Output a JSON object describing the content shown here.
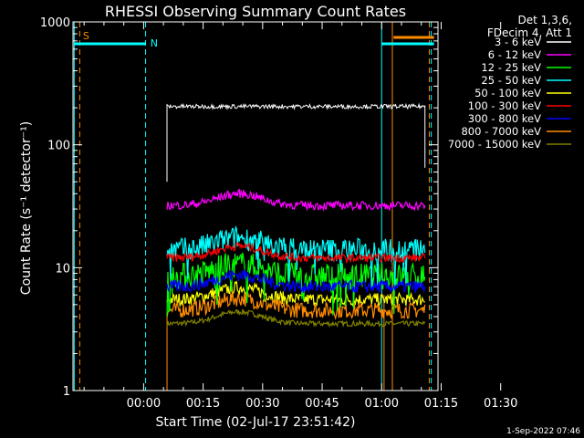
{
  "chart_data": {
    "type": "line",
    "title": "RHESSI Observing Summary Count Rates",
    "xlabel": "Start Time (02-Jul-17 23:51:42)",
    "ylabel": "Count Rate (s⁻¹ detector⁻¹)",
    "yscale": "log",
    "ylim": [
      1,
      1000
    ],
    "xlim_minutes": [
      -9.5,
      82.5
    ],
    "x_ticks": [
      {
        "label": "00:00",
        "min": 8.3
      },
      {
        "label": "00:15",
        "min": 23.3
      },
      {
        "label": "00:30",
        "min": 38.3
      },
      {
        "label": "00:45",
        "min": 53.3
      },
      {
        "label": "01:00",
        "min": 68.3
      },
      {
        "label": "01:15",
        "min": 83.3
      },
      {
        "label": "01:30",
        "min": 98.3
      }
    ],
    "y_ticks": [
      "1",
      "10",
      "100",
      "1000"
    ],
    "data_window_minutes": [
      14.2,
      79.2
    ],
    "legend_header": [
      "Det 1,3,6,",
      "FDecim 4, Att 1"
    ],
    "series": [
      {
        "name": "3 - 6 keV",
        "color": "#000000",
        "level": 205,
        "noise": 0.04
      },
      {
        "name": "6 - 12 keV",
        "color": "#ff00ff",
        "level": 32,
        "noise": 0.08
      },
      {
        "name": "12 - 25 keV",
        "color": "#00ff00",
        "level": 8.5,
        "noise": 0.25
      },
      {
        "name": "25 - 50 keV",
        "color": "#00ffff",
        "level": 14,
        "noise": 0.22
      },
      {
        "name": "50 - 100 keV",
        "color": "#ffff00",
        "level": 5.5,
        "noise": 0.12
      },
      {
        "name": "100 - 300 keV",
        "color": "#ff0000",
        "level": 12,
        "noise": 0.08
      },
      {
        "name": "300 - 800 keV",
        "color": "#0000ff",
        "level": 7,
        "noise": 0.12
      },
      {
        "name": "800 - 7000 keV",
        "color": "#ff8c00",
        "level": 4.5,
        "noise": 0.15
      },
      {
        "name": "7000 - 15000 keV",
        "color": "#808000",
        "level": 3.5,
        "noise": 0.05
      }
    ],
    "flags": [
      {
        "label": "S",
        "color": "#ff8c00"
      },
      {
        "label": "N",
        "color": "#00ffff"
      }
    ],
    "timestamp": "1-Sep-2022 07:46"
  }
}
